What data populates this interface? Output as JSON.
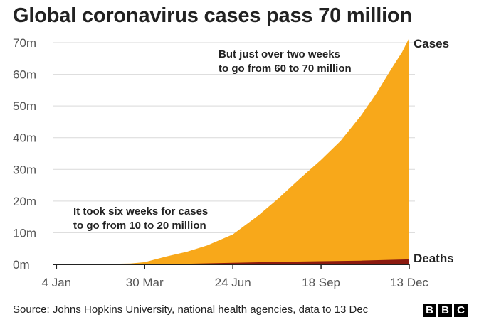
{
  "title": "Global coronavirus cases pass 70 million",
  "source": "Source: Johns Hopkins University, national health agencies, data to 13 Dec",
  "logo_letters": [
    "B",
    "B",
    "C"
  ],
  "colors": {
    "cases": "#F8A81A",
    "deaths": "#8B1A10",
    "grid": "#d9d9d9",
    "axis": "#222222",
    "text": "#222222"
  },
  "chart_data": {
    "type": "area",
    "title": "Global coronavirus cases pass 70 million",
    "xlabel": "",
    "ylabel": "",
    "ylim": [
      0,
      70
    ],
    "y_unit": "millions",
    "y_ticks": [
      0,
      10,
      20,
      30,
      40,
      50,
      60,
      70
    ],
    "y_tick_labels": [
      "0m",
      "10m",
      "20m",
      "30m",
      "40m",
      "50m",
      "60m",
      "70m"
    ],
    "x_range": [
      0,
      347
    ],
    "x_ticks": [
      3,
      89,
      175,
      261,
      347
    ],
    "x_tick_labels": [
      "4 Jan",
      "30 Mar",
      "24 Jun",
      "18 Sep",
      "13 Dec"
    ],
    "x_unit": "day of year (2020)",
    "series": [
      {
        "name": "Cases",
        "x": [
          0,
          30,
          60,
          75,
          89,
          110,
          130,
          150,
          175,
          200,
          220,
          240,
          261,
          280,
          300,
          315,
          330,
          340,
          347
        ],
        "values": [
          0,
          0,
          0.2,
          0.3,
          0.7,
          2.5,
          4,
          6,
          9.5,
          15.5,
          21,
          27,
          33,
          39,
          47,
          54,
          62,
          67,
          71.5
        ]
      },
      {
        "name": "Deaths",
        "x": [
          0,
          60,
          89,
          130,
          175,
          220,
          261,
          300,
          330,
          347
        ],
        "values": [
          0,
          0,
          0.03,
          0.2,
          0.5,
          0.8,
          1.0,
          1.2,
          1.45,
          1.6
        ]
      }
    ],
    "annotations": [
      {
        "id": "top",
        "lines": [
          "But just over two weeks",
          "to go from 60 to 70 million"
        ]
      },
      {
        "id": "bottom",
        "lines": [
          "It took six weeks for cases",
          "to go from 10 to 20 million"
        ]
      }
    ]
  }
}
